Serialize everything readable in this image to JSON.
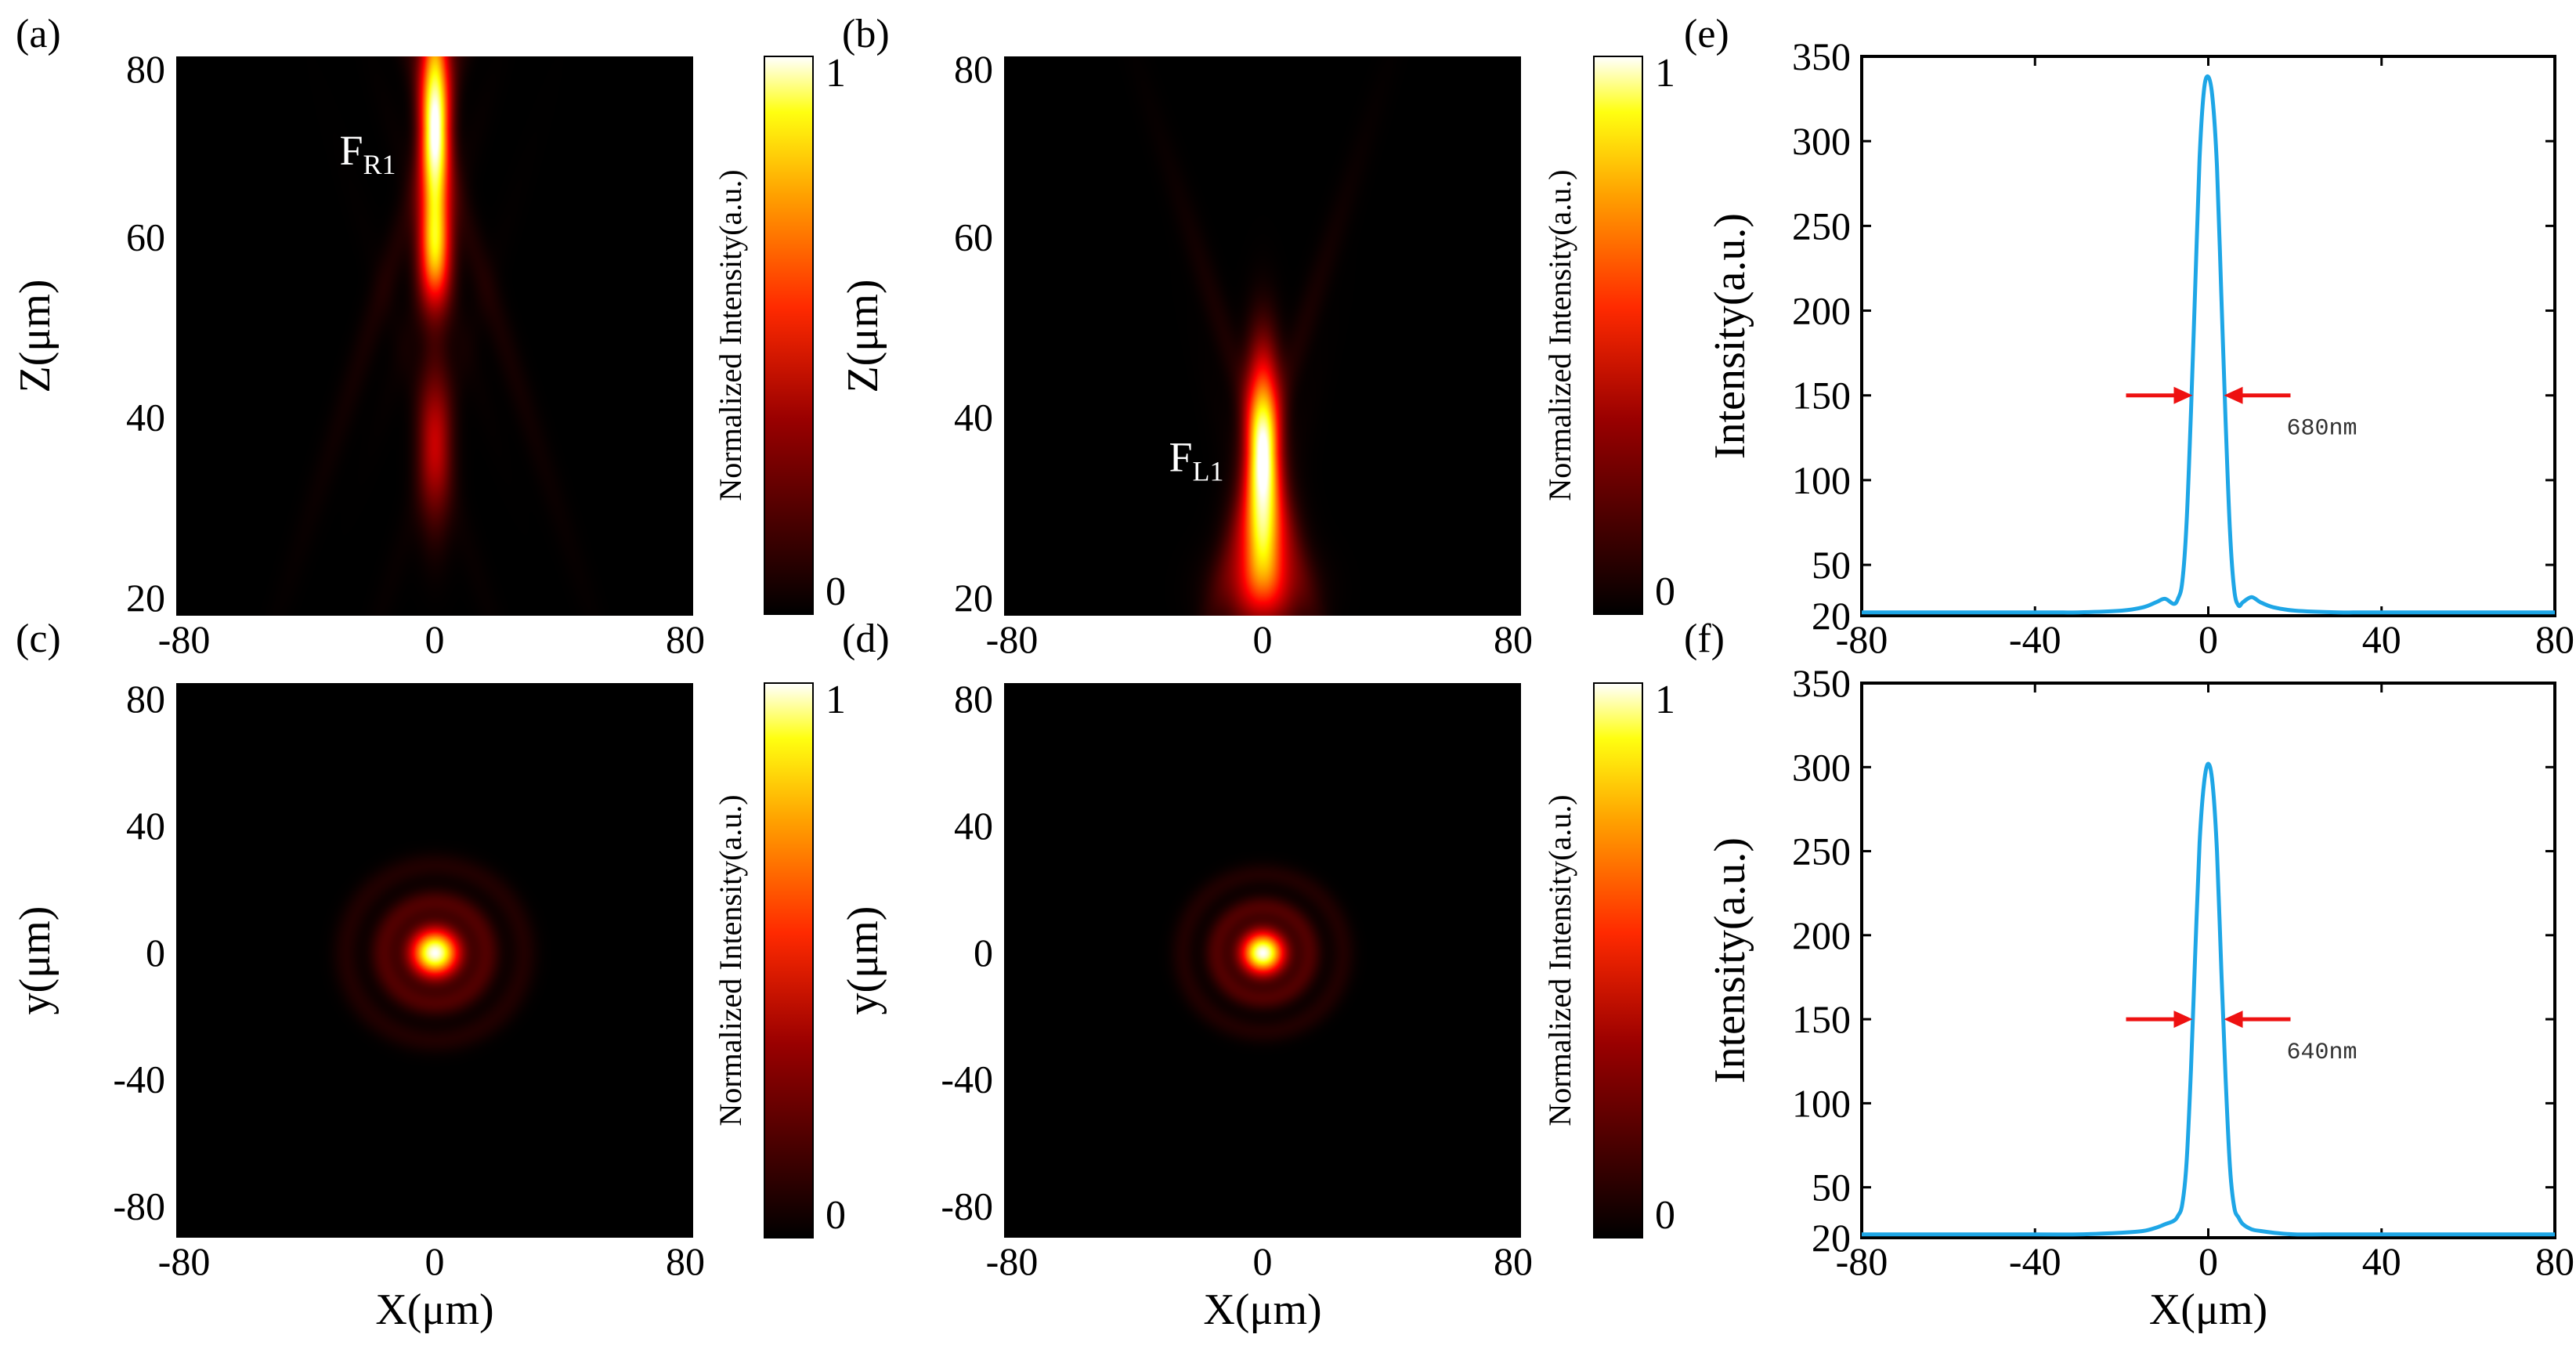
{
  "colors": {
    "line": "#1ea6e6",
    "arrow": "#ee1111",
    "map_background": "#000000"
  },
  "colorbar": {
    "max_label": "1",
    "min_label": "0",
    "label": "Normalized Intensity(a.u.)"
  },
  "chart_data": [
    {
      "type": "heatmap",
      "panel": "(a)",
      "colormap": "hot",
      "xlabel": "",
      "ylabel": "Z(μm)",
      "xlim": [
        -80,
        80
      ],
      "ylim": [
        18,
        80
      ],
      "xticks": [
        "-80",
        "0",
        "80"
      ],
      "yticks": [
        "20",
        "40",
        "60",
        "80"
      ],
      "annotation": {
        "main": "F",
        "sub": "R1",
        "x": -12,
        "z": 68
      },
      "features": [
        {
          "x": 0,
          "z": 72,
          "sx": 3,
          "sz": 9,
          "amp": 1.0
        },
        {
          "x": 0,
          "z": 58,
          "sx": 3.5,
          "sz": 4,
          "amp": 0.45
        },
        {
          "x": 0,
          "z": 37,
          "sx": 3.5,
          "sz": 6,
          "amp": 0.3
        }
      ]
    },
    {
      "type": "heatmap",
      "panel": "(b)",
      "colormap": "hot",
      "xlabel": "",
      "ylabel": "Z(μm)",
      "xlim": [
        -80,
        80
      ],
      "ylim": [
        18,
        80
      ],
      "xticks": [
        "-80",
        "0",
        "80"
      ],
      "yticks": [
        "20",
        "40",
        "60",
        "80"
      ],
      "annotation": {
        "main": "F",
        "sub": "L1",
        "x": -12,
        "z": 34
      },
      "features": [
        {
          "x": 0,
          "z": 36,
          "sx": 3.5,
          "sz": 7,
          "amp": 1.0
        },
        {
          "x": 0,
          "z": 26,
          "sx": 6,
          "sz": 4,
          "amp": 0.4
        },
        {
          "x": 0,
          "z": 21,
          "sx": 9,
          "sz": 3,
          "amp": 0.25
        }
      ]
    },
    {
      "type": "heatmap",
      "panel": "(c)",
      "colormap": "hot",
      "xlabel": "X(μm)",
      "ylabel": "y(μm)",
      "xlim": [
        -80,
        80
      ],
      "ylim": [
        -90,
        85
      ],
      "xticks": [
        "-80",
        "0",
        "80"
      ],
      "yticks": [
        "80",
        "40",
        "0",
        "-40",
        "-80"
      ],
      "features": [
        {
          "x": 0,
          "y": 0,
          "s": 5,
          "amp": 1.0
        }
      ]
    },
    {
      "type": "heatmap",
      "panel": "(d)",
      "colormap": "hot",
      "xlabel": "X(μm)",
      "ylabel": "y(μm)",
      "xlim": [
        -80,
        80
      ],
      "ylim": [
        -90,
        85
      ],
      "xticks": [
        "-80",
        "0",
        "80"
      ],
      "yticks": [
        "80",
        "40",
        "0",
        "-40",
        "-80"
      ],
      "features": [
        {
          "x": 0,
          "y": 0,
          "s": 4.5,
          "amp": 1.0
        }
      ]
    },
    {
      "type": "line",
      "panel": "(e)",
      "xlabel": "",
      "ylabel": "Intensity(a.u.)",
      "xlim": [
        -80,
        80
      ],
      "ylim": [
        20,
        350
      ],
      "xticks": [
        "-80",
        "-40",
        "0",
        "40",
        "80"
      ],
      "yticks": [
        "20",
        "50",
        "100",
        "150",
        "200",
        "250",
        "300",
        "350"
      ],
      "x": [
        -80,
        -40,
        -30,
        -20,
        -15,
        -12,
        -10,
        -8,
        -7,
        -6,
        -5,
        -4,
        -3,
        -2,
        -1,
        0,
        1,
        2,
        3,
        4,
        5,
        6,
        7,
        8,
        10,
        12,
        15,
        20,
        30,
        40,
        80
      ],
      "y": [
        22,
        22,
        22,
        23,
        25,
        28,
        30,
        27,
        30,
        40,
        75,
        140,
        215,
        290,
        330,
        338,
        325,
        285,
        210,
        135,
        70,
        35,
        26,
        28,
        31,
        28,
        25,
        23,
        22,
        22,
        22
      ],
      "annotation": {
        "text": "680nm",
        "y": 150
      }
    },
    {
      "type": "line",
      "panel": "(f)",
      "xlabel": "X(μm)",
      "ylabel": "Intensity(a.u.)",
      "xlim": [
        -80,
        80
      ],
      "ylim": [
        20,
        350
      ],
      "xticks": [
        "-80",
        "-40",
        "0",
        "40",
        "80"
      ],
      "yticks": [
        "20",
        "50",
        "100",
        "150",
        "200",
        "250",
        "300",
        "350"
      ],
      "x": [
        -80,
        -40,
        -30,
        -20,
        -15,
        -12,
        -10,
        -8,
        -7,
        -6,
        -5,
        -4,
        -3,
        -2,
        -1,
        0,
        1,
        2,
        3,
        4,
        5,
        6,
        7,
        8,
        10,
        12,
        15,
        20,
        30,
        40,
        80
      ],
      "y": [
        22,
        22,
        22,
        23,
        24,
        26,
        28,
        30,
        33,
        40,
        65,
        120,
        190,
        255,
        290,
        302,
        290,
        250,
        180,
        115,
        62,
        38,
        32,
        28,
        25,
        24,
        23,
        22,
        22,
        22,
        22
      ],
      "annotation": {
        "text": "640nm",
        "y": 150
      }
    }
  ]
}
